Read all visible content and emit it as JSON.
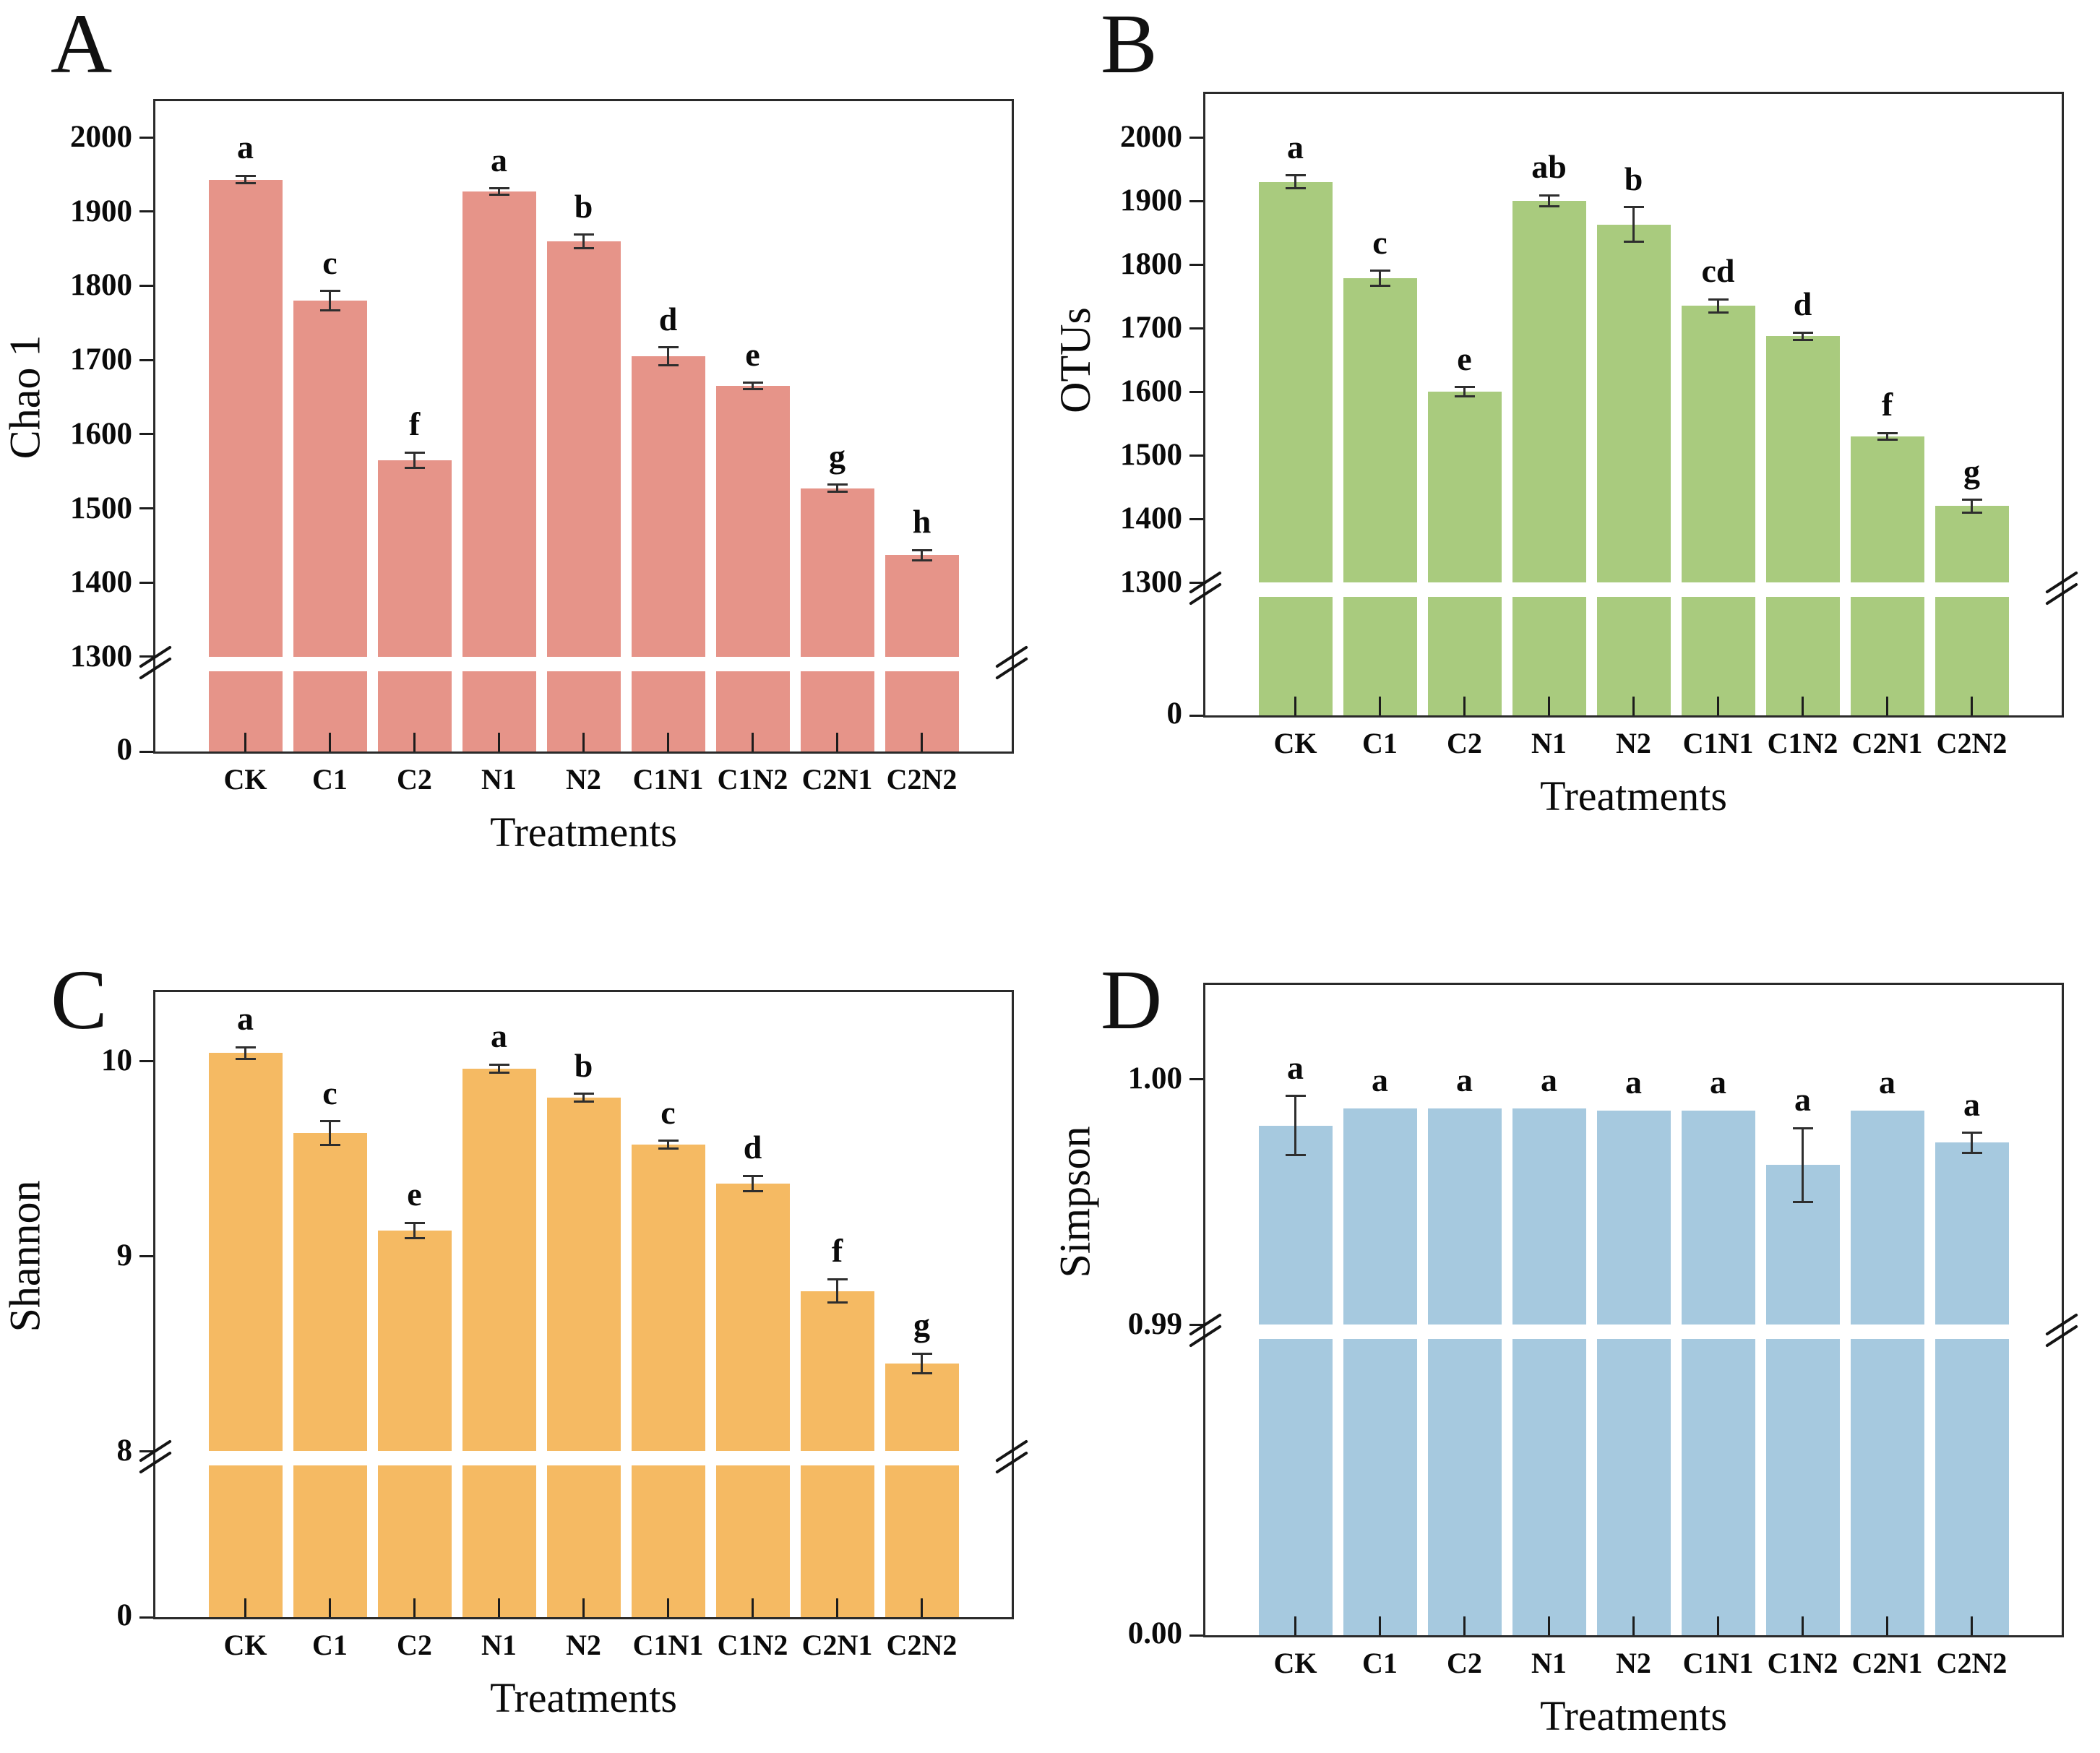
{
  "figure": {
    "xlabel": "Treatments",
    "categories": [
      "CK",
      "C1",
      "C2",
      "N1",
      "N2",
      "C1N1",
      "C1N2",
      "C2N1",
      "C2N2"
    ],
    "background_color": "#ffffff",
    "axis_color": "#2a2a2a"
  },
  "chart_data": [
    {
      "type": "bar",
      "panel_label": "A",
      "ylabel": "Chao 1",
      "xlabel": "Treatments",
      "bar_color": "#E69489",
      "categories": [
        "CK",
        "C1",
        "C2",
        "N1",
        "N2",
        "C1N1",
        "C1N2",
        "C2N1",
        "C2N2"
      ],
      "values": [
        1943,
        1780,
        1565,
        1927,
        1860,
        1705,
        1665,
        1527,
        1437
      ],
      "errors": [
        5,
        13,
        10,
        4,
        9,
        12,
        4,
        5,
        7
      ],
      "sig_letters": [
        "a",
        "c",
        "f",
        "a",
        "b",
        "d",
        "e",
        "g",
        "h"
      ],
      "ytick_labels": [
        "2000",
        "1900",
        "1800",
        "1700",
        "1600",
        "1500",
        "1400",
        "1300"
      ],
      "ytick_values": [
        2000,
        1900,
        1800,
        1700,
        1600,
        1500,
        1400,
        1300
      ],
      "baseline_label": "0",
      "axis_break": {
        "lower": 0,
        "upper": 1300
      },
      "ylim": [
        0,
        2055
      ],
      "grid": false,
      "legend": null
    },
    {
      "type": "bar",
      "panel_label": "B",
      "ylabel": "OTUs",
      "xlabel": "Treatments",
      "bar_color": "#A9CB7E",
      "categories": [
        "CK",
        "C1",
        "C2",
        "N1",
        "N2",
        "C1N1",
        "C1N2",
        "C2N1",
        "C2N2"
      ],
      "values": [
        1930,
        1778,
        1600,
        1900,
        1863,
        1735,
        1687,
        1530,
        1420
      ],
      "errors": [
        10,
        12,
        7,
        9,
        27,
        10,
        6,
        5,
        10
      ],
      "sig_letters": [
        "a",
        "c",
        "e",
        "ab",
        "b",
        "cd",
        "d",
        "f",
        "g"
      ],
      "ytick_labels": [
        "2000",
        "1900",
        "1800",
        "1700",
        "1600",
        "1500",
        "1400",
        "1300"
      ],
      "ytick_values": [
        2000,
        1900,
        1800,
        1700,
        1600,
        1500,
        1400,
        1300
      ],
      "baseline_label": "0",
      "axis_break": {
        "lower": 0,
        "upper": 1300
      },
      "ylim": [
        0,
        2070
      ],
      "grid": false,
      "legend": null
    },
    {
      "type": "bar",
      "panel_label": "C",
      "ylabel": "Shannon",
      "xlabel": "Treatments",
      "bar_color": "#F5BA63",
      "categories": [
        "CK",
        "C1",
        "C2",
        "N1",
        "N2",
        "C1N1",
        "C1N2",
        "C2N1",
        "C2N2"
      ],
      "values": [
        10.04,
        9.63,
        9.13,
        9.96,
        9.81,
        9.57,
        9.37,
        8.82,
        8.45
      ],
      "errors": [
        0.03,
        0.06,
        0.04,
        0.02,
        0.02,
        0.02,
        0.04,
        0.06,
        0.05
      ],
      "sig_letters": [
        "a",
        "c",
        "e",
        "a",
        "b",
        "c",
        "d",
        "f",
        "g"
      ],
      "ytick_labels": [
        "10",
        "9",
        "8"
      ],
      "ytick_values": [
        10,
        9,
        8
      ],
      "baseline_label": "0",
      "axis_break": {
        "lower": 0,
        "upper": 8
      },
      "ylim": [
        0,
        10.35
      ],
      "grid": false,
      "legend": null
    },
    {
      "type": "bar",
      "panel_label": "D",
      "ylabel": "Simpson",
      "xlabel": "Treatments",
      "bar_color": "#A6C9DF",
      "categories": [
        "CK",
        "C1",
        "C2",
        "N1",
        "N2",
        "C1N1",
        "C1N2",
        "C2N1",
        "C2N2"
      ],
      "values": [
        0.9981,
        0.9988,
        0.9988,
        0.9988,
        0.9987,
        0.9987,
        0.9965,
        0.9987,
        0.9974
      ],
      "errors": [
        0.0012,
        0,
        0,
        0,
        0,
        0,
        0.0015,
        0,
        0.0004
      ],
      "sig_letters": [
        "a",
        "a",
        "a",
        "a",
        "a",
        "a",
        "a",
        "a",
        "a"
      ],
      "ytick_labels": [
        "1.00",
        "0.99"
      ],
      "ytick_values": [
        1.0,
        0.99
      ],
      "baseline_label": "0.00",
      "axis_break": {
        "lower": 0,
        "upper": 0.99
      },
      "ylim": [
        0,
        1.0038
      ],
      "grid": false,
      "legend": null
    }
  ]
}
